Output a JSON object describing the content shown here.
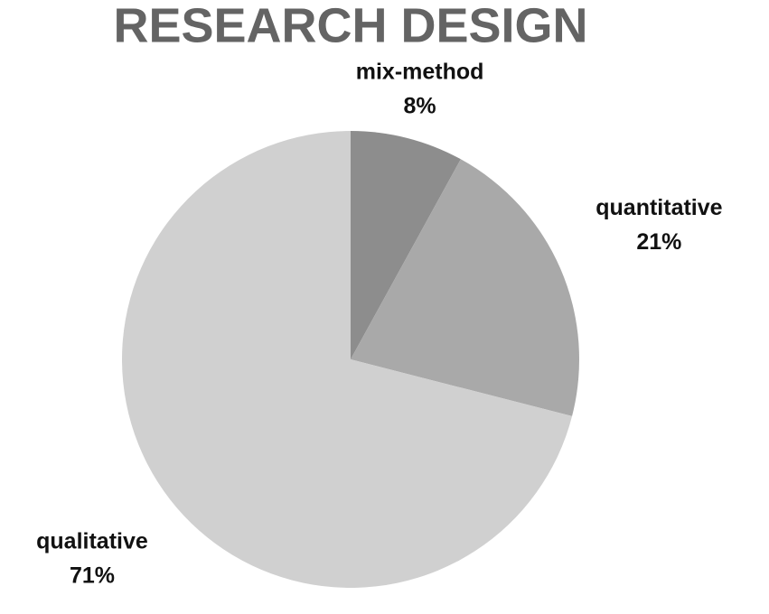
{
  "chart_data": {
    "type": "pie",
    "title": "RESEARCH DESIGN",
    "categories": [
      "mix-method",
      "quantitative",
      "qualitative"
    ],
    "values": [
      8,
      21,
      71
    ],
    "value_labels": [
      "8%",
      "21%",
      "71%"
    ],
    "colors": [
      "#8d8d8d",
      "#a9a9a9",
      "#d0d0d0"
    ]
  }
}
